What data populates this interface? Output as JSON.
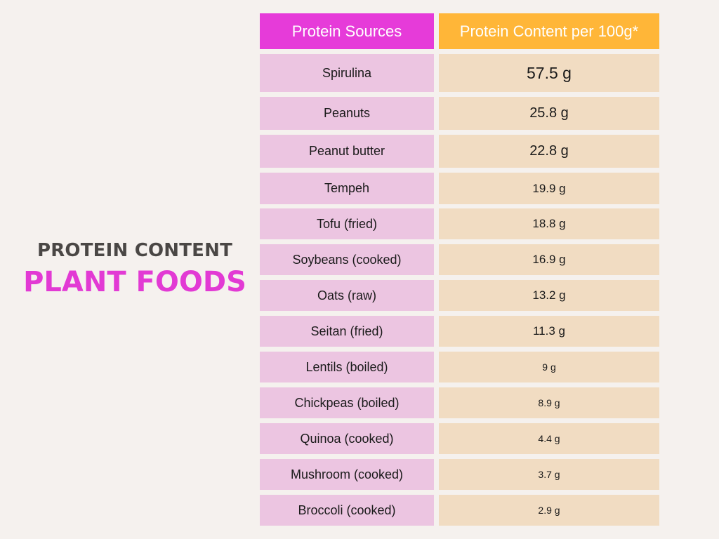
{
  "title": {
    "line1": "PROTEIN CONTENT",
    "line2": "PLANT FOODS"
  },
  "colors": {
    "background": "#f5f1ee",
    "title_dark": "#4a4745",
    "title_accent": "#e23ad4",
    "header_sources": "#e63bd9",
    "header_content": "#ffb638",
    "source_cell": "#ecc5e1",
    "value_cell": "#f1dcc2"
  },
  "table": {
    "headers": [
      "Protein Sources",
      "Protein Content per 100g*"
    ],
    "rows": [
      {
        "source": "Spirulina",
        "value": "57.5 g"
      },
      {
        "source": "Peanuts",
        "value": "25.8 g"
      },
      {
        "source": "Peanut butter",
        "value": "22.8 g"
      },
      {
        "source": "Tempeh",
        "value": "19.9 g"
      },
      {
        "source": "Tofu (fried)",
        "value": "18.8 g"
      },
      {
        "source": "Soybeans (cooked)",
        "value": "16.9 g"
      },
      {
        "source": "Oats (raw)",
        "value": "13.2 g"
      },
      {
        "source": "Seitan (fried)",
        "value": "11.3 g"
      },
      {
        "source": "Lentils (boiled)",
        "value": "9 g"
      },
      {
        "source": "Chickpeas (boiled)",
        "value": "8.9 g"
      },
      {
        "source": "Quinoa (cooked)",
        "value": "4.4 g"
      },
      {
        "source": "Mushroom (cooked)",
        "value": "3.7 g"
      },
      {
        "source": "Broccoli (cooked)",
        "value": "2.9 g"
      }
    ]
  }
}
